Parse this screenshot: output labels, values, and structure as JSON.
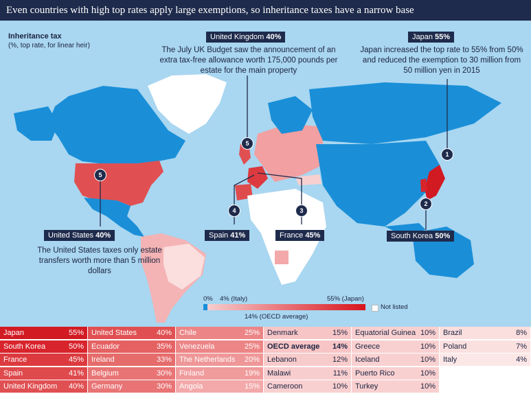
{
  "header": {
    "title": "Even countries with high top rates apply large exemptions, so inheritance taxes have a narrow base"
  },
  "map_labels": {
    "title": "Inheritance tax",
    "subtitle": "(%, top rate, for linear heir)"
  },
  "callouts": {
    "uk": {
      "name": "United Kingdom",
      "rate": "40%",
      "note": "The July UK Budget saw the announcement of an extra tax-free allowance worth 175,000 pounds per estate for the main property",
      "pin": "5"
    },
    "japan": {
      "name": "Japan",
      "rate": "55%",
      "note": "Japan increased the top rate to 55% from 50% and reduced the exemption to 30 million from 50 million yen in 2015",
      "pin": "1"
    },
    "us": {
      "name": "United States",
      "rate": "40%",
      "note": "The United States taxes only estate transfers worth more than 5 million dollars",
      "pin": "5"
    },
    "spain": {
      "name": "Spain",
      "rate": "41%",
      "pin": "4"
    },
    "france": {
      "name": "France",
      "rate": "45%",
      "pin": "3"
    },
    "korea": {
      "name": "South Korea",
      "rate": "50%",
      "pin": "2"
    }
  },
  "legend": {
    "min_label": "0%",
    "italy_label": "4% (Italy)",
    "japan_label": "55% (Japan)",
    "oecd_label": "14% (OECD average)",
    "not_listed": "Not listed",
    "scale_min": 0,
    "scale_max": 55,
    "italy_value": 4,
    "oecd_value": 14,
    "low_color": "#f7d3d3",
    "high_color": "#d8141c",
    "not_listed_color": "#ffffff",
    "land_unlisted_color": "#1a8fd8"
  },
  "table": {
    "columns": [
      [
        {
          "name": "Japan",
          "value": "55%",
          "color": "#d21a23"
        },
        {
          "name": "South Korea",
          "value": "50%",
          "color": "#d8242c"
        },
        {
          "name": "France",
          "value": "45%",
          "color": "#dc3a3f"
        },
        {
          "name": "Spain",
          "value": "41%",
          "color": "#df4a4d"
        },
        {
          "name": "United Kingdom",
          "value": "40%",
          "color": "#e05052"
        }
      ],
      [
        {
          "name": "United States",
          "value": "40%",
          "color": "#e05052"
        },
        {
          "name": "Ecuador",
          "value": "35%",
          "color": "#e56263"
        },
        {
          "name": "Ireland",
          "value": "33%",
          "color": "#e66b6b"
        },
        {
          "name": "Belgium",
          "value": "30%",
          "color": "#e87475"
        },
        {
          "name": "Germany",
          "value": "30%",
          "color": "#e87475"
        }
      ],
      [
        {
          "name": "Chile",
          "value": "25%",
          "color": "#ec8586"
        },
        {
          "name": "Venezuela",
          "value": "25%",
          "color": "#ec8586"
        },
        {
          "name": "The Netherlands",
          "value": "20%",
          "color": "#ef9798"
        },
        {
          "name": "Finland",
          "value": "19%",
          "color": "#f09b9c"
        },
        {
          "name": "Angola",
          "value": "15%",
          "color": "#f3a9aa"
        }
      ],
      [
        {
          "name": "Denmark",
          "value": "15%",
          "color": "#f7c5c6"
        },
        {
          "name": "OECD average",
          "value": "14%",
          "color": "#f7c5c6",
          "bold": true
        },
        {
          "name": "Lebanon",
          "value": "12%",
          "color": "#f8cbcb"
        },
        {
          "name": "Malawi",
          "value": "11%",
          "color": "#f8cdce"
        },
        {
          "name": "Cameroon",
          "value": "10%",
          "color": "#f9d0d0"
        }
      ],
      [
        {
          "name": "Equatorial Guinea",
          "value": "10%",
          "color": "#f9d0d0"
        },
        {
          "name": "Greece",
          "value": "10%",
          "color": "#f9d0d0"
        },
        {
          "name": "Iceland",
          "value": "10%",
          "color": "#f9d0d0"
        },
        {
          "name": "Puerto Rico",
          "value": "10%",
          "color": "#f9d0d0"
        },
        {
          "name": "Turkey",
          "value": "10%",
          "color": "#f9d0d0"
        }
      ],
      [
        {
          "name": "Brazil",
          "value": "8%",
          "color": "#fbdede"
        },
        {
          "name": "Poland",
          "value": "7%",
          "color": "#fbe0e0"
        },
        {
          "name": "Italy",
          "value": "4%",
          "color": "#fce7e7"
        }
      ]
    ]
  }
}
